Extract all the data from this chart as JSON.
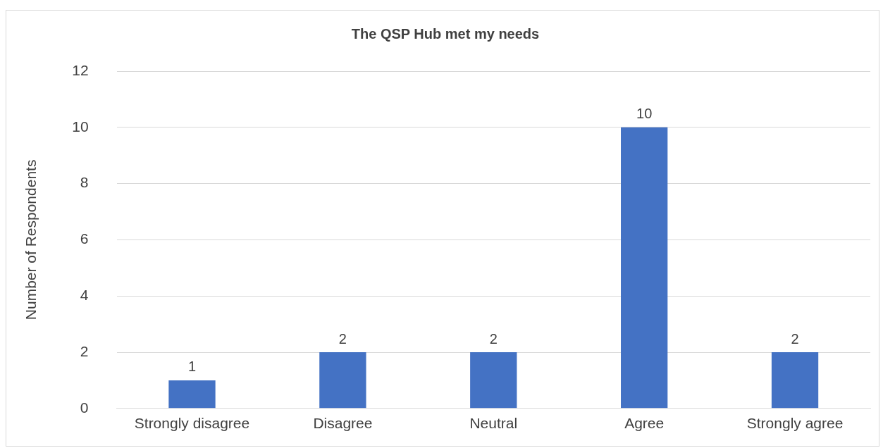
{
  "chart_data": {
    "type": "bar",
    "title": "The QSP Hub met my needs",
    "ylabel": "Number of Respondents",
    "categories": [
      "Strongly disagree",
      "Disagree",
      "Neutral",
      "Agree",
      "Strongly agree"
    ],
    "values": [
      1,
      2,
      2,
      10,
      2
    ],
    "color": "#4472c4",
    "ylim": [
      0,
      12
    ],
    "yticks": [
      0,
      2,
      4,
      6,
      8,
      10,
      12
    ],
    "grid": "y",
    "data_labels": true,
    "legend": false
  }
}
